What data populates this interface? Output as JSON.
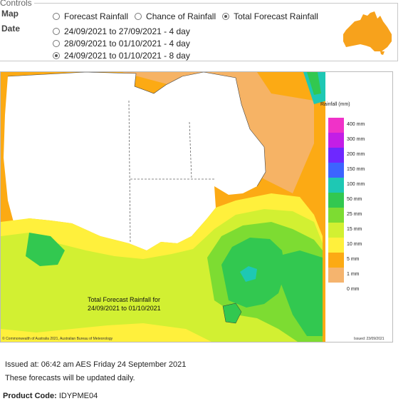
{
  "controls": {
    "legend": "Controls",
    "map_label": "Map",
    "date_label": "Date",
    "map_options": [
      {
        "label": "Forecast Rainfall",
        "checked": false
      },
      {
        "label": "Chance of Rainfall",
        "checked": false
      },
      {
        "label": "Total Forecast Rainfall",
        "checked": true
      }
    ],
    "date_options": [
      {
        "label": "24/09/2021 to 27/09/2021 - 4 day",
        "checked": false
      },
      {
        "label": "28/09/2021 to 01/10/2021 - 4 day",
        "checked": false
      },
      {
        "label": "24/09/2021 to 01/10/2021 - 8 day",
        "checked": true
      }
    ],
    "thumb_icon": "australia-map-icon",
    "thumb_color": "#f7a21c"
  },
  "map": {
    "caption_line1": "Total Forecast Rainfall for",
    "caption_line2": "24/09/2021 to 01/10/2021",
    "copyright": "© Commonwealth of Australia 2021, Australian Bureau of Meteorology",
    "issued_small": "Issued: 23/09/2021",
    "legend": {
      "title": "Rainfall (mm)",
      "items": [
        {
          "label": "400 mm",
          "color": "#f032c8"
        },
        {
          "label": "300 mm",
          "color": "#c31ee6"
        },
        {
          "label": "200 mm",
          "color": "#6e28ff"
        },
        {
          "label": "150 mm",
          "color": "#3c64ff"
        },
        {
          "label": "100 mm",
          "color": "#1ec8b4"
        },
        {
          "label": "50 mm",
          "color": "#32c850"
        },
        {
          "label": "25 mm",
          "color": "#7ddc32"
        },
        {
          "label": "15 mm",
          "color": "#d2f032"
        },
        {
          "label": "10 mm",
          "color": "#fff03c"
        },
        {
          "label": "5 mm",
          "color": "#fcaa14"
        },
        {
          "label": "1 mm",
          "color": "#f5b46e"
        },
        {
          "label": "0 mm",
          "color": "#ffffff"
        }
      ]
    }
  },
  "info": {
    "issued": "Issued at: 06:42 am AES Friday 24 September 2021",
    "updated": "These forecasts will be updated daily.",
    "product_label": "Product Code:",
    "product_code": "IDYPME04"
  }
}
